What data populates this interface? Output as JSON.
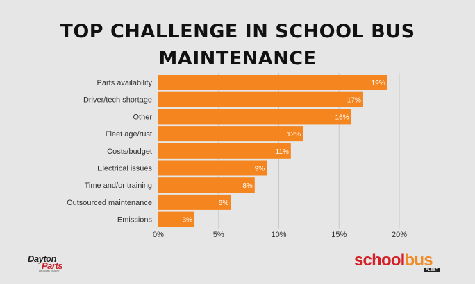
{
  "chart_data": {
    "type": "bar",
    "orientation": "horizontal",
    "title": "TOP CHALLENGE IN SCHOOL BUS MAINTENANCE",
    "categories": [
      "Parts availability",
      "Driver/tech shortage",
      "Other",
      "Fleet age/rust",
      "Costs/budget",
      "Electrical issues",
      "Time and/or training",
      "Outsourced maintenance",
      "Emissions"
    ],
    "values": [
      19,
      17,
      16,
      12,
      11,
      9,
      8,
      6,
      3
    ],
    "value_labels": [
      "19%",
      "17%",
      "16%",
      "12%",
      "11%",
      "9%",
      "8%",
      "6%",
      "3%"
    ],
    "xlim": [
      0,
      20
    ],
    "x_ticks": [
      0,
      5,
      10,
      15,
      20
    ],
    "x_tick_labels": [
      "0%",
      "5%",
      "10%",
      "15%",
      "20%"
    ],
    "grid": true,
    "bar_color": "#f5861f",
    "grid_color": "#c8c8c8"
  },
  "logos": {
    "left": {
      "line1": "Dayton",
      "line2": "Parts",
      "tagline": "DRIVEN BY QUALITY"
    },
    "right": {
      "part1": "school",
      "part2": "bus",
      "badge": "FLEET"
    }
  }
}
